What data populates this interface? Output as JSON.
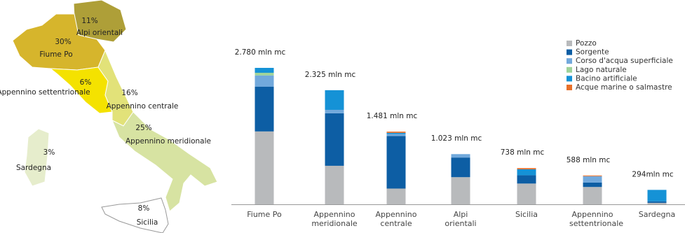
{
  "map": {
    "regions": [
      {
        "name": "Alpi orientali",
        "value": 11,
        "value_label": "11%",
        "color": "#ae9f38"
      },
      {
        "name": "Fiume Po",
        "value": 30,
        "value_label": "30%",
        "color": "#d6b52c"
      },
      {
        "name": "Appennino settentrionale",
        "value": 6,
        "value_label": "6%",
        "color": "#f4e200"
      },
      {
        "name": "Appennino centrale",
        "value": 16,
        "value_label": "16%",
        "color": "#e2e279"
      },
      {
        "name": "Appennino meridionale",
        "value": 25,
        "value_label": "25%",
        "color": "#d7e3a2"
      },
      {
        "name": "Sardegna",
        "value": 3,
        "value_label": "3%",
        "color": "#e6edcc"
      },
      {
        "name": "Sicilia",
        "value": 8,
        "value_label": "8%",
        "color": "#ffffff"
      }
    ]
  },
  "chart_data": {
    "type": "stacked_bar",
    "categories": [
      "Fiume Po",
      "Appennino meridionale",
      "Appennino centrale",
      "Alpi orientali",
      "Sicilia",
      "Appennino settentrionale",
      "Sardegna"
    ],
    "total_labels": [
      "2.780 mln mc",
      "2.325 mln mc",
      "1.481 mln mc",
      "1.023 mln mc",
      "738 mln  mc",
      "588 mln mc",
      "294mln mc"
    ],
    "series": [
      {
        "name": "Pozzo",
        "color": "#b8babc",
        "values": [
          1485,
          785,
          321,
          553,
          423,
          353,
          30
        ]
      },
      {
        "name": "Sorgente",
        "color": "#0d5ea4",
        "values": [
          910,
          1070,
          1070,
          400,
          170,
          90,
          30
        ]
      },
      {
        "name": "Corso d'acqua superficiale",
        "color": "#72a9dc",
        "values": [
          230,
          70,
          40,
          70,
          0,
          130,
          0
        ]
      },
      {
        "name": "Lago naturale",
        "color": "#9fd39a",
        "values": [
          55,
          0,
          0,
          0,
          0,
          0,
          0
        ]
      },
      {
        "name": "Bacino artificiale",
        "color": "#1592d6",
        "values": [
          100,
          400,
          25,
          0,
          120,
          0,
          234
        ]
      },
      {
        "name": "Acque marine o salmastre",
        "color": "#e8702a",
        "values": [
          0,
          0,
          25,
          0,
          25,
          15,
          0
        ]
      }
    ],
    "legend": "top-right"
  }
}
